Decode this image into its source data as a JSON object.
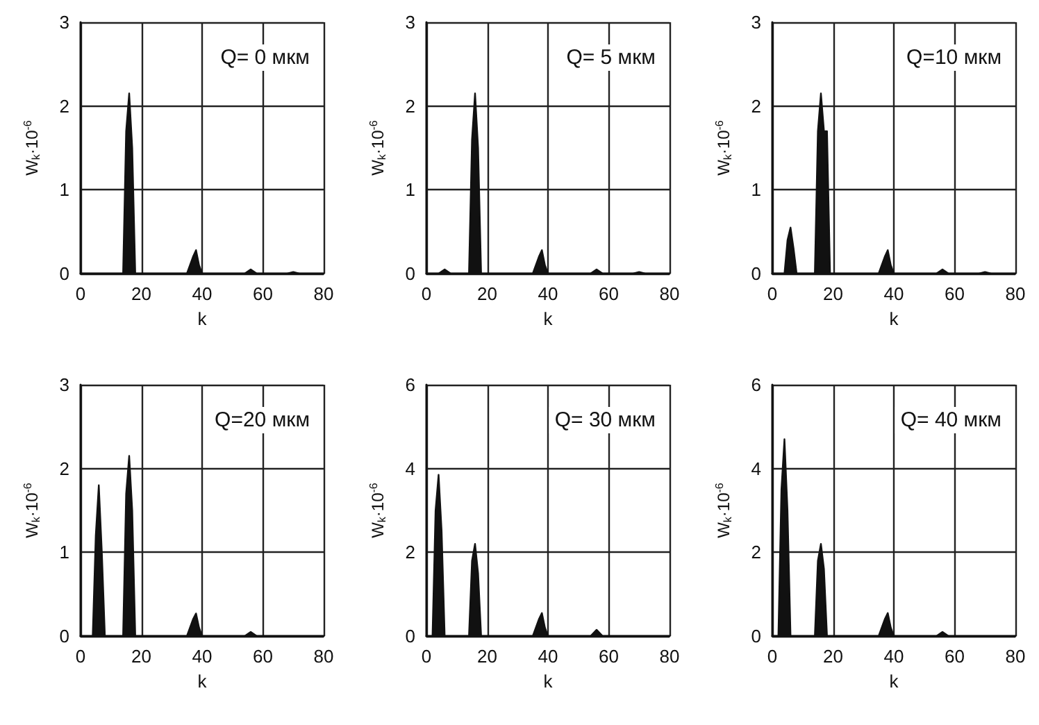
{
  "chart_data": [
    {
      "type": "area",
      "annotations": [
        "Q= 0 мкм"
      ],
      "xlabel": "k",
      "ylabel": "W$_{k}$·10$^{-6}$",
      "xlim": [
        0,
        80
      ],
      "ylim": [
        0,
        3
      ],
      "xticks": [
        0,
        20,
        40,
        60,
        80
      ],
      "yticks": [
        0,
        1,
        2,
        3
      ],
      "grid": true,
      "marker": "none",
      "series": [
        {
          "color": "#111111",
          "x": [
            0,
            14,
            15,
            16,
            17,
            18,
            35,
            37,
            38,
            39,
            40,
            54,
            56,
            58,
            68,
            70,
            72,
            80
          ],
          "values": [
            0,
            0,
            1.7,
            2.15,
            1.5,
            0,
            0,
            0.2,
            0.28,
            0.1,
            0,
            0,
            0.05,
            0,
            0,
            0.02,
            0,
            0
          ]
        }
      ]
    },
    {
      "type": "area",
      "annotations": [
        "Q= 5 мкм"
      ],
      "xlabel": "k",
      "ylabel": "W$_{k}$·10$^{-6}$",
      "xlim": [
        0,
        80
      ],
      "ylim": [
        0,
        3
      ],
      "xticks": [
        0,
        20,
        40,
        60,
        80
      ],
      "yticks": [
        0,
        1,
        2,
        3
      ],
      "grid": true,
      "marker": "none",
      "series": [
        {
          "color": "#111111",
          "x": [
            0,
            4,
            6,
            8,
            14,
            15,
            16,
            17,
            18,
            35,
            37,
            38,
            39,
            40,
            54,
            56,
            58,
            68,
            70,
            72,
            80
          ],
          "values": [
            0,
            0,
            0.05,
            0,
            0,
            1.6,
            2.15,
            1.5,
            0,
            0,
            0.2,
            0.28,
            0.1,
            0,
            0,
            0.05,
            0,
            0,
            0.02,
            0,
            0
          ]
        }
      ]
    },
    {
      "type": "area",
      "annotations": [
        "Q=10 мкм"
      ],
      "xlabel": "k",
      "ylabel": "W$_{k}$·10$^{-6}$",
      "xlim": [
        0,
        80
      ],
      "ylim": [
        0,
        3
      ],
      "xticks": [
        0,
        20,
        40,
        60,
        80
      ],
      "yticks": [
        0,
        1,
        2,
        3
      ],
      "grid": true,
      "marker": "none",
      "series": [
        {
          "color": "#111111",
          "x": [
            0,
            4,
            5,
            6,
            7,
            8,
            14,
            15,
            16,
            17,
            18,
            19,
            35,
            37,
            38,
            39,
            40,
            54,
            56,
            58,
            68,
            70,
            72,
            80
          ],
          "values": [
            0,
            0,
            0.4,
            0.55,
            0.3,
            0,
            0,
            1.7,
            2.15,
            1.7,
            1.7,
            0,
            0,
            0.2,
            0.28,
            0.1,
            0,
            0,
            0.05,
            0,
            0,
            0.02,
            0,
            0
          ]
        }
      ]
    },
    {
      "type": "area",
      "annotations": [
        "Q=20 мкм"
      ],
      "xlabel": "k",
      "ylabel": "W$_{k}$·10$^{-6}$",
      "xlim": [
        0,
        80
      ],
      "ylim": [
        0,
        3
      ],
      "xticks": [
        0,
        20,
        40,
        60,
        80
      ],
      "yticks": [
        0,
        1,
        2,
        3
      ],
      "grid": true,
      "marker": "none",
      "series": [
        {
          "color": "#111111",
          "x": [
            0,
            4,
            5,
            6,
            7,
            8,
            14,
            15,
            16,
            17,
            18,
            35,
            37,
            38,
            39,
            40,
            54,
            56,
            58,
            80
          ],
          "values": [
            0,
            0,
            1.2,
            1.8,
            1.0,
            0,
            0,
            1.7,
            2.15,
            1.5,
            0,
            0,
            0.2,
            0.27,
            0.1,
            0,
            0,
            0.05,
            0,
            0
          ]
        }
      ]
    },
    {
      "type": "area",
      "annotations": [
        "Q= 30 мкм"
      ],
      "xlabel": "k",
      "ylabel": "W$_{k}$·10$^{-6}$",
      "xlim": [
        0,
        80
      ],
      "ylim": [
        0,
        6
      ],
      "xticks": [
        0,
        20,
        40,
        60,
        80
      ],
      "yticks": [
        0,
        2,
        4,
        6
      ],
      "grid": true,
      "marker": "none",
      "series": [
        {
          "color": "#111111",
          "x": [
            0,
            2,
            3,
            4,
            5,
            6,
            14,
            15,
            16,
            17,
            18,
            35,
            37,
            38,
            39,
            40,
            54,
            56,
            58,
            80
          ],
          "values": [
            0,
            0,
            3.0,
            3.85,
            2.5,
            0,
            0,
            1.8,
            2.2,
            1.5,
            0,
            0,
            0.4,
            0.55,
            0.2,
            0,
            0,
            0.15,
            0,
            0
          ]
        }
      ]
    },
    {
      "type": "area",
      "annotations": [
        "Q= 40 мкм"
      ],
      "xlabel": "k",
      "ylabel": "W$_{k}$·10$^{-6}$",
      "xlim": [
        0,
        80
      ],
      "ylim": [
        0,
        6
      ],
      "xticks": [
        0,
        20,
        40,
        60,
        80
      ],
      "yticks": [
        0,
        2,
        4,
        6
      ],
      "grid": true,
      "marker": "none",
      "series": [
        {
          "color": "#111111",
          "x": [
            0,
            2,
            3,
            4,
            5,
            6,
            14,
            15,
            16,
            17,
            18,
            35,
            37,
            38,
            39,
            40,
            54,
            56,
            58,
            80
          ],
          "values": [
            0,
            0,
            3.5,
            4.7,
            3.0,
            0,
            0,
            1.8,
            2.2,
            1.6,
            0,
            0,
            0.4,
            0.55,
            0.2,
            0,
            0,
            0.1,
            0,
            0
          ]
        }
      ]
    }
  ]
}
